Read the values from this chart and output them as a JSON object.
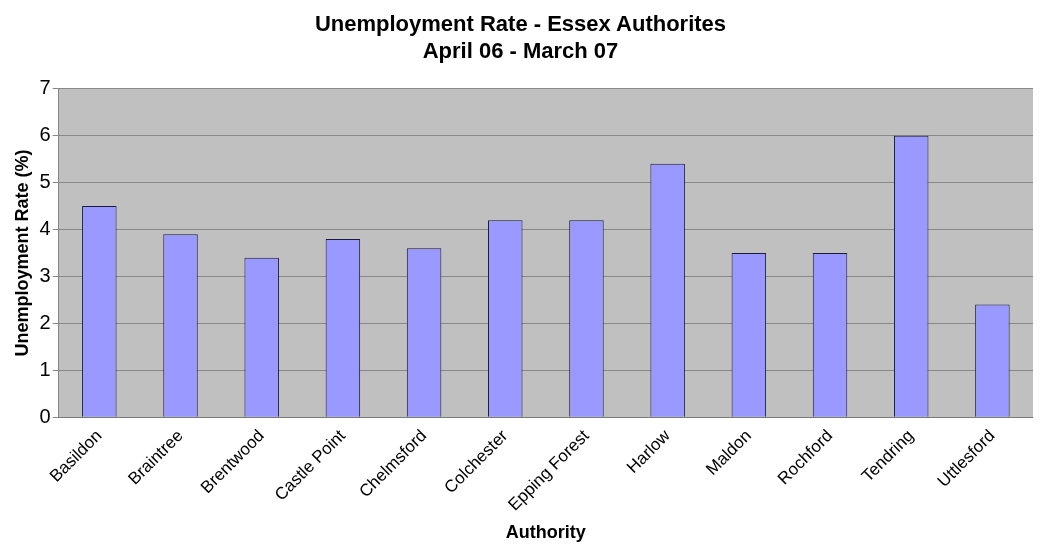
{
  "chart_data": {
    "type": "bar",
    "title": "Unemployment Rate - Essex Authorites",
    "subtitle": "April 06 - March 07",
    "xlabel": "Authority",
    "ylabel": "Unemployment Rate (%)",
    "categories": [
      "Basildon",
      "Braintree",
      "Brentwood",
      "Castle Point",
      "Chelmsford",
      "Colchester",
      "Epping Forest",
      "Harlow",
      "Maldon",
      "Rochford",
      "Tendring",
      "Uttlesford"
    ],
    "values": [
      4.5,
      3.9,
      3.4,
      3.8,
      3.6,
      4.2,
      4.2,
      5.4,
      3.5,
      3.5,
      6.0,
      2.4
    ],
    "color": "#9999ff",
    "ylim": [
      0,
      7
    ],
    "yticks": [
      0,
      1,
      2,
      3,
      4,
      5,
      6,
      7
    ],
    "grid": "y",
    "legend": false
  }
}
